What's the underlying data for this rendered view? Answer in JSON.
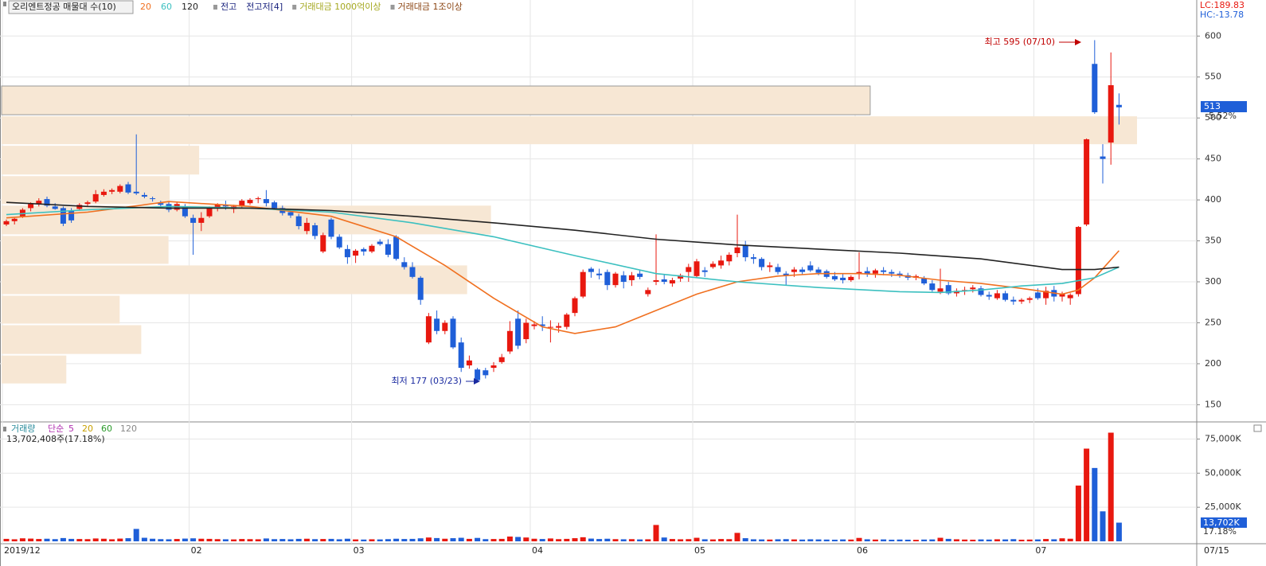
{
  "chart_data": {
    "type": "candlestick",
    "title": "오리엔트정공 매물대 수(10)",
    "legend": {
      "ma_labels_color": [
        "#f07020",
        "#3cc0c0",
        "#222222"
      ],
      "items": [
        {
          "text": "전고",
          "color": "#1a237e"
        },
        {
          "text": "전고저[4]",
          "color": "#1a237e"
        },
        {
          "text": "거래대금 1000억이상",
          "color": "#a5a820"
        },
        {
          "text": "거래대금 1조이상",
          "color": "#8b4513"
        }
      ]
    },
    "lc_label": "LC:189.83",
    "hc_label": "HC:-13.78",
    "change_label": "-5.52%",
    "x_end_label": "07/15",
    "annotations": {
      "high": "최고 595 (07/10)",
      "low": "최저 177 (03/23)"
    },
    "up_color": "#e8180f",
    "down_color": "#1f5fd8",
    "categories": [
      "2019/12",
      null,
      null,
      null,
      null,
      null,
      null,
      null,
      null,
      null,
      null,
      null,
      null,
      null,
      null,
      null,
      null,
      null,
      null,
      null,
      null,
      null,
      null,
      "02",
      null,
      null,
      null,
      null,
      null,
      null,
      null,
      null,
      null,
      null,
      null,
      null,
      null,
      null,
      null,
      null,
      null,
      null,
      null,
      "03",
      null,
      null,
      null,
      null,
      null,
      null,
      null,
      null,
      null,
      null,
      null,
      null,
      null,
      null,
      null,
      null,
      null,
      null,
      null,
      null,
      null,
      "04",
      null,
      null,
      null,
      null,
      null,
      null,
      null,
      null,
      null,
      null,
      null,
      null,
      null,
      null,
      null,
      null,
      null,
      null,
      null,
      "05",
      null,
      null,
      null,
      null,
      null,
      null,
      null,
      null,
      null,
      null,
      null,
      null,
      null,
      null,
      null,
      null,
      null,
      null,
      null,
      "06",
      null,
      null,
      null,
      null,
      null,
      null,
      null,
      null,
      null,
      null,
      null,
      null,
      null,
      null,
      null,
      null,
      null,
      null,
      null,
      null,
      null,
      "07",
      null,
      null,
      null,
      null,
      null,
      null,
      null,
      null,
      null,
      null
    ],
    "open": [
      370,
      374,
      380,
      390,
      395,
      401,
      392,
      390,
      387,
      389,
      395,
      398,
      406,
      410,
      410,
      419,
      410,
      406,
      402,
      396,
      395,
      388,
      392,
      378,
      372,
      380,
      390,
      394,
      389,
      392,
      396,
      401,
      401,
      397,
      390,
      385,
      380,
      362,
      369,
      337,
      376,
      355,
      340,
      332,
      340,
      337,
      349,
      346,
      355,
      324,
      318,
      305,
      226,
      255,
      240,
      255,
      226,
      198,
      193,
      192,
      195,
      202,
      215,
      255,
      230,
      246,
      248,
      244,
      244,
      245,
      262,
      282,
      316,
      310,
      312,
      296,
      308,
      302,
      310,
      285,
      300,
      303,
      298,
      304,
      312,
      307,
      314,
      318,
      320,
      325,
      335,
      345,
      330,
      328,
      318,
      318,
      310,
      312,
      315,
      320,
      315,
      313,
      307,
      305,
      302,
      310,
      313,
      310,
      314,
      312,
      310,
      308,
      305,
      304,
      298,
      288,
      296,
      286,
      289,
      291,
      292,
      284,
      280,
      286,
      278,
      276,
      278,
      287,
      280,
      290,
      282,
      280,
      285,
      370,
      566,
      453,
      470,
      516
    ],
    "high": [
      376,
      378,
      390,
      397,
      402,
      404,
      396,
      392,
      390,
      396,
      399,
      412,
      413,
      414,
      419,
      422,
      480,
      409,
      404,
      399,
      398,
      397,
      395,
      382,
      385,
      392,
      396,
      399,
      394,
      401,
      402,
      404,
      412,
      399,
      393,
      389,
      383,
      378,
      372,
      360,
      378,
      358,
      345,
      340,
      342,
      346,
      352,
      352,
      357,
      330,
      324,
      307,
      262,
      265,
      253,
      258,
      232,
      210,
      195,
      195,
      202,
      212,
      252,
      265,
      255,
      252,
      258,
      253,
      250,
      262,
      282,
      315,
      318,
      316,
      315,
      312,
      313,
      312,
      314,
      293,
      358,
      309,
      305,
      310,
      322,
      328,
      318,
      325,
      332,
      336,
      382,
      350,
      334,
      330,
      324,
      322,
      313,
      318,
      318,
      325,
      318,
      315,
      312,
      310,
      308,
      336,
      318,
      316,
      318,
      315,
      313,
      311,
      309,
      307,
      302,
      316,
      300,
      292,
      294,
      296,
      295,
      288,
      290,
      289,
      282,
      280,
      282,
      292,
      294,
      295,
      288,
      286,
      368,
      475,
      595,
      468,
      580,
      530
    ],
    "low": [
      368,
      370,
      378,
      386,
      392,
      391,
      388,
      368,
      372,
      387,
      392,
      396,
      404,
      407,
      408,
      407,
      406,
      402,
      398,
      392,
      385,
      386,
      378,
      333,
      362,
      378,
      386,
      388,
      384,
      390,
      394,
      396,
      392,
      388,
      381,
      378,
      364,
      358,
      352,
      335,
      352,
      340,
      322,
      323,
      332,
      335,
      344,
      330,
      326,
      315,
      304,
      272,
      224,
      236,
      236,
      218,
      190,
      194,
      177,
      182,
      190,
      200,
      212,
      218,
      225,
      242,
      240,
      226,
      238,
      242,
      258,
      280,
      305,
      303,
      290,
      293,
      292,
      295,
      303,
      282,
      296,
      297,
      294,
      300,
      300,
      305,
      306,
      316,
      316,
      320,
      330,
      325,
      322,
      314,
      312,
      309,
      296,
      306,
      309,
      312,
      308,
      304,
      301,
      298,
      300,
      303,
      306,
      305,
      308,
      306,
      305,
      302,
      302,
      296,
      288,
      285,
      284,
      282,
      284,
      287,
      282,
      278,
      278,
      276,
      272,
      273,
      274,
      278,
      272,
      276,
      276,
      272,
      282,
      368,
      505,
      420,
      443,
      492
    ],
    "close": [
      374,
      377,
      388,
      395,
      399,
      393,
      389,
      371,
      375,
      394,
      397,
      407,
      410,
      412,
      417,
      409,
      408,
      404,
      401,
      394,
      388,
      395,
      380,
      372,
      378,
      390,
      394,
      392,
      392,
      399,
      400,
      402,
      396,
      390,
      384,
      381,
      368,
      372,
      356,
      357,
      355,
      342,
      330,
      338,
      337,
      344,
      346,
      333,
      328,
      318,
      306,
      278,
      258,
      240,
      250,
      220,
      195,
      204,
      180,
      186,
      198,
      208,
      240,
      222,
      250,
      248,
      246,
      245,
      246,
      260,
      280,
      312,
      312,
      308,
      296,
      310,
      300,
      308,
      306,
      290,
      302,
      300,
      302,
      308,
      318,
      325,
      312,
      322,
      326,
      333,
      342,
      330,
      328,
      318,
      320,
      312,
      308,
      315,
      312,
      314,
      311,
      306,
      303,
      302,
      306,
      312,
      310,
      314,
      312,
      310,
      308,
      305,
      307,
      298,
      290,
      292,
      286,
      289,
      290,
      293,
      284,
      282,
      286,
      278,
      276,
      278,
      280,
      280,
      289,
      282,
      285,
      284,
      367,
      474,
      507,
      450,
      540,
      513
    ],
    "volume": [
      1800,
      1500,
      2200,
      2000,
      1700,
      1900,
      1600,
      2400,
      1800,
      1700,
      1600,
      2100,
      1900,
      1500,
      2000,
      2300,
      9100,
      2600,
      1900,
      1600,
      1500,
      1700,
      2000,
      2200,
      1900,
      1800,
      1600,
      1500,
      1400,
      1700,
      1600,
      1500,
      2100,
      1600,
      1700,
      1500,
      1800,
      1900,
      1600,
      1700,
      1800,
      1500,
      1900,
      1400,
      1300,
      1500,
      1400,
      1600,
      1900,
      1700,
      1800,
      2200,
      2800,
      2400,
      1900,
      2300,
      2600,
      1800,
      2500,
      1600,
      1700,
      1800,
      3500,
      3200,
      2800,
      1900,
      1700,
      2100,
      1600,
      1800,
      2300,
      3000,
      2000,
      1700,
      1900,
      1600,
      1500,
      1600,
      1400,
      1500,
      12000,
      2800,
      1700,
      1500,
      1600,
      2600,
      1500,
      1400,
      1700,
      1600,
      6200,
      2300,
      1500,
      1400,
      1300,
      1500,
      1600,
      1400,
      1300,
      1500,
      1400,
      1300,
      1200,
      1400,
      1300,
      2500,
      1500,
      1300,
      1400,
      1200,
      1300,
      1200,
      1100,
      1300,
      1400,
      2600,
      1800,
      1500,
      1300,
      1200,
      1400,
      1300,
      1500,
      1400,
      1600,
      1200,
      1300,
      1400,
      1700,
      1500,
      2200,
      1900,
      40900,
      68000,
      53800,
      22000,
      79700,
      13702
    ],
    "ma_series": [
      {
        "name": "20",
        "color": "#f07020",
        "x": [
          0,
          10,
          20,
          30,
          40,
          48,
          54,
          60,
          66,
          70,
          75,
          80,
          85,
          90,
          95,
          100,
          105,
          110,
          115,
          120,
          125,
          130,
          132,
          134,
          137
        ],
        "values": [
          378,
          385,
          398,
          392,
          380,
          355,
          320,
          280,
          245,
          237,
          245,
          265,
          285,
          300,
          307,
          310,
          310,
          308,
          302,
          298,
          292,
          285,
          290,
          305,
          338
        ]
      },
      {
        "name": "60",
        "color": "#3cc0c0",
        "x": [
          0,
          10,
          20,
          30,
          40,
          50,
          60,
          70,
          80,
          90,
          100,
          110,
          115,
          120,
          125,
          130,
          134,
          137
        ],
        "values": [
          382,
          388,
          392,
          390,
          385,
          372,
          355,
          332,
          310,
          300,
          293,
          288,
          287,
          290,
          295,
          298,
          305,
          318
        ]
      },
      {
        "name": "120",
        "color": "#222222",
        "x": [
          0,
          10,
          20,
          30,
          40,
          50,
          60,
          70,
          80,
          90,
          100,
          110,
          120,
          130,
          134,
          137
        ],
        "values": [
          397,
          392,
          390,
          390,
          387,
          380,
          372,
          363,
          352,
          345,
          340,
          335,
          328,
          315,
          315,
          318
        ]
      }
    ],
    "profile": {
      "title": "매물대 수(10)",
      "color": "#f7e7d4",
      "edges": [
        175,
        211,
        248,
        284,
        321,
        357,
        394,
        430,
        467,
        503,
        540
      ],
      "amounts": [
        5.7,
        12.3,
        10.4,
        41.0,
        14.7,
        43.1,
        14.8,
        17.4,
        100,
        76.5
      ]
    },
    "ylim": [
      129,
      644
    ],
    "yticks": [
      150,
      200,
      250,
      300,
      350,
      400,
      450,
      500,
      550,
      600
    ],
    "volume_panel": {
      "title": "거래량",
      "method": "단순",
      "periods": [
        {
          "text": "5",
          "color": "#b030b0"
        },
        {
          "text": "20",
          "color": "#c8a000"
        },
        {
          "text": "60",
          "color": "#2a9a2a"
        },
        {
          "text": "120",
          "color": "#888888"
        }
      ],
      "info": "13,702,408주(17.18%)",
      "last_label": "13,702K",
      "ratio_label": "17.18%",
      "ylim": [
        0,
        87000
      ],
      "yticks": [
        {
          "value": 25000,
          "label": "25,000K"
        },
        {
          "value": 50000,
          "label": "50,000K"
        },
        {
          "value": 75000,
          "label": "75,000K"
        }
      ]
    },
    "grid": true
  }
}
